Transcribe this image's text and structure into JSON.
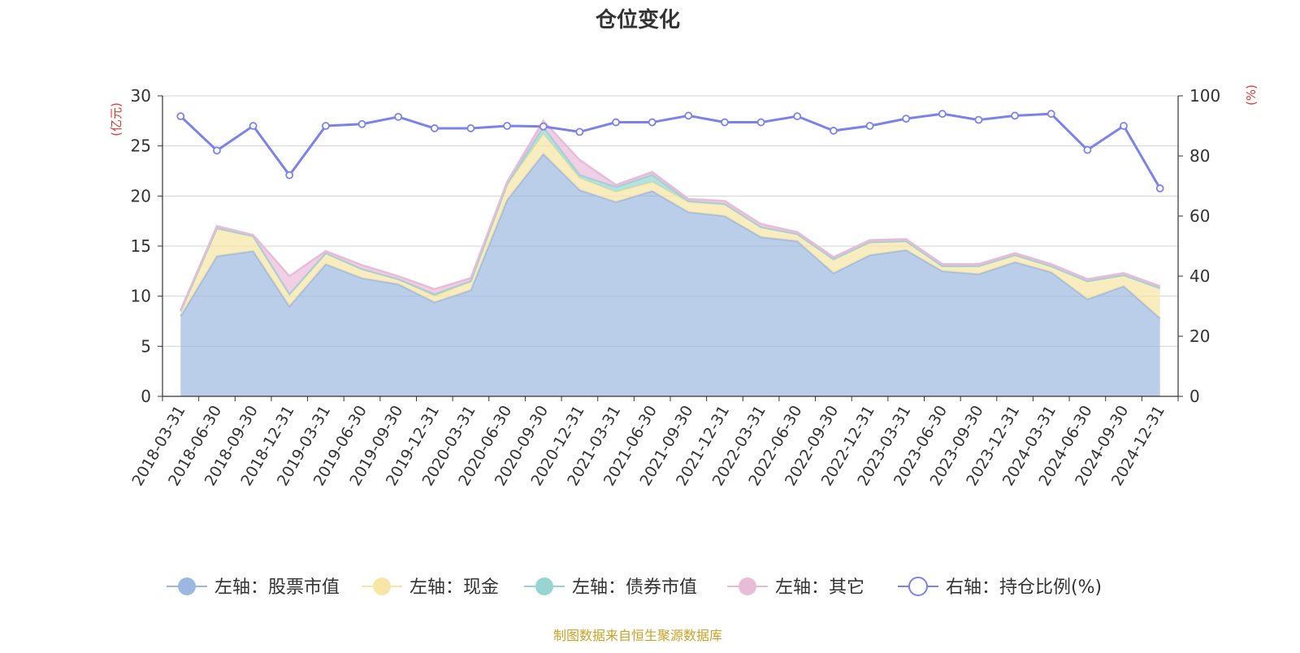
{
  "chart_data": {
    "type": "area",
    "title": "仓位变化",
    "left_axis_unit": "(亿元)",
    "right_axis_unit": "(%)",
    "source": "制图数据来自恒生聚源数据库",
    "stacked": true,
    "ylim_left": [
      0,
      30
    ],
    "yticks_left": [
      0,
      5,
      10,
      15,
      20,
      25,
      30
    ],
    "ylim_right": [
      0,
      100
    ],
    "yticks_right": [
      0,
      20,
      40,
      60,
      80,
      100
    ],
    "grid": true,
    "legend_position": "bottom",
    "x": [
      "2018-03-31",
      "2018-06-30",
      "2018-09-30",
      "2018-12-31",
      "2019-03-31",
      "2019-06-30",
      "2019-09-30",
      "2019-12-31",
      "2020-03-31",
      "2020-06-30",
      "2020-09-30",
      "2020-12-31",
      "2021-03-31",
      "2021-06-30",
      "2021-09-30",
      "2021-12-31",
      "2022-03-31",
      "2022-06-30",
      "2022-09-30",
      "2022-12-31",
      "2023-03-31",
      "2023-06-30",
      "2023-09-30",
      "2023-12-31",
      "2024-03-31",
      "2024-06-30",
      "2024-09-30",
      "2024-12-31"
    ],
    "series": [
      {
        "name": "左轴：股票市值",
        "axis": "left",
        "color": "#9db8e0",
        "values": [
          8.0,
          14.0,
          14.5,
          9.0,
          13.2,
          11.8,
          11.2,
          9.4,
          10.6,
          19.6,
          24.2,
          20.6,
          19.4,
          20.5,
          18.4,
          18.0,
          15.9,
          15.5,
          12.3,
          14.1,
          14.6,
          12.5,
          12.2,
          13.4,
          12.4,
          9.7,
          11.0,
          7.8
        ]
      },
      {
        "name": "左轴：现金",
        "axis": "left",
        "color": "#f7e6a5",
        "values": [
          0.5,
          2.7,
          1.5,
          1.2,
          1.1,
          0.9,
          0.5,
          0.6,
          0.9,
          1.5,
          2.0,
          1.2,
          1.0,
          0.9,
          1.0,
          1.2,
          1.0,
          0.7,
          1.4,
          1.3,
          0.9,
          0.5,
          0.8,
          0.7,
          0.6,
          1.8,
          1.1,
          3.0
        ]
      },
      {
        "name": "左轴：债券市值",
        "axis": "left",
        "color": "#96d5d2",
        "values": [
          0,
          0.1,
          0,
          0,
          0,
          0,
          0,
          0.2,
          0,
          0.1,
          0.7,
          0.3,
          0.5,
          0.7,
          0.1,
          0,
          0,
          0,
          0,
          0,
          0,
          0,
          0,
          0,
          0,
          0,
          0,
          0
        ]
      },
      {
        "name": "左轴：其它",
        "axis": "left",
        "color": "#e8bcd9",
        "values": [
          0.1,
          0.2,
          0.1,
          1.8,
          0.2,
          0.4,
          0.3,
          0.5,
          0.3,
          0.2,
          0.6,
          1.5,
          0.2,
          0.3,
          0.2,
          0.3,
          0.3,
          0.2,
          0.2,
          0.2,
          0.2,
          0.2,
          0.2,
          0.2,
          0.2,
          0.2,
          0.2,
          0.2
        ]
      },
      {
        "name": "右轴：持仓比例(%)",
        "axis": "right",
        "color": "#7b83eb",
        "values": [
          93.2,
          81.8,
          90.0,
          73.6,
          90.0,
          90.6,
          93.0,
          89.2,
          89.2,
          90.0,
          89.8,
          88.0,
          91.2,
          91.2,
          93.4,
          91.2,
          91.2,
          93.2,
          88.4,
          90.0,
          92.4,
          94.0,
          92.0,
          93.4,
          94.0,
          82.0,
          90.0,
          69.2
        ]
      }
    ]
  },
  "colors": {
    "title": "#333333",
    "axis_unit": "#e53935",
    "axis_text": "#333333",
    "grid": "#d3d3d3",
    "source": "#c9a227"
  }
}
